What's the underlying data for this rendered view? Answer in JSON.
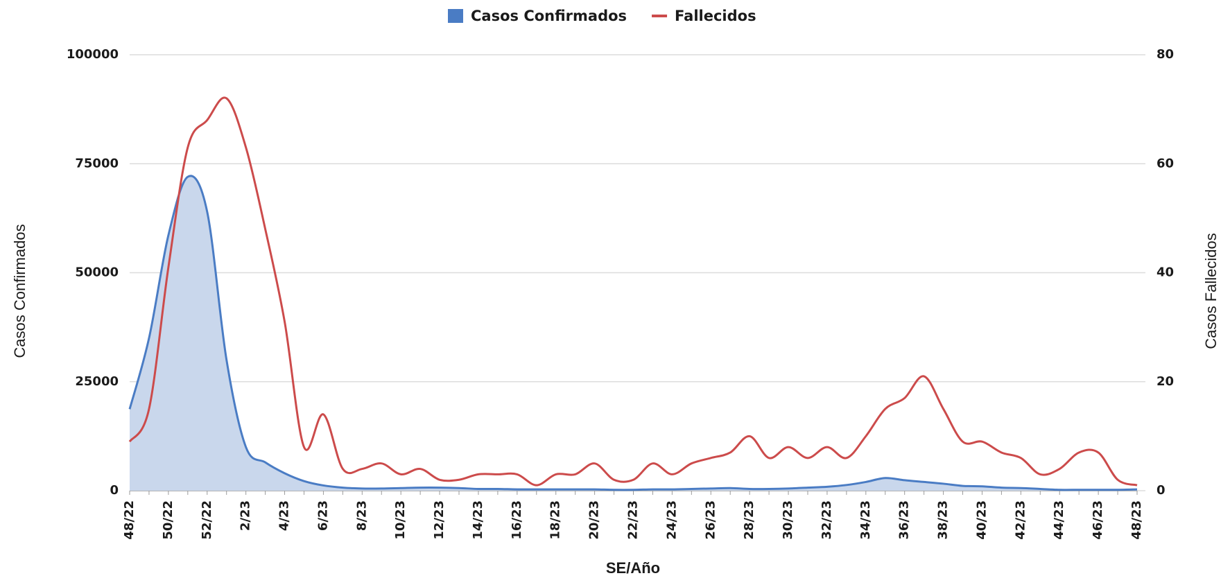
{
  "chart_data": {
    "type": "line",
    "x_label": "SE/Año",
    "y_label": "Casos Confirmados",
    "y2_label": "Casos Fallecidos",
    "categories": [
      "48/22",
      null,
      "50/22",
      null,
      "52/22",
      null,
      "2/23",
      null,
      "4/23",
      null,
      "6/23",
      null,
      "8/23",
      null,
      "10/23",
      null,
      "12/23",
      null,
      "14/23",
      null,
      "16/23",
      null,
      "18/23",
      null,
      "20/23",
      null,
      "22/23",
      null,
      "24/23",
      null,
      "26/23",
      null,
      "28/23",
      null,
      "30/23",
      null,
      "32/23",
      null,
      "34/23",
      null,
      "36/23",
      null,
      "38/23",
      null,
      "40/23",
      null,
      "42/23",
      null,
      "44/23",
      null,
      "46/23",
      null,
      "48/23"
    ],
    "series": [
      {
        "name": "Casos Confirmados",
        "color": "#4a7cc4",
        "fill": "#c9d7ec",
        "axis": "y",
        "values": [
          18700,
          35000,
          58600,
          72000,
          64000,
          30000,
          10000,
          6500,
          4000,
          2200,
          1200,
          700,
          500,
          500,
          600,
          700,
          700,
          600,
          400,
          400,
          300,
          300,
          300,
          300,
          300,
          200,
          200,
          300,
          300,
          400,
          500,
          600,
          400,
          400,
          500,
          700,
          900,
          1300,
          2000,
          2900,
          2400,
          2000,
          1600,
          1100,
          1000,
          700,
          600,
          400,
          200,
          200,
          200,
          200,
          300
        ]
      },
      {
        "name": "Fallecidos",
        "color": "#cc4b4b",
        "axis": "y2",
        "values": [
          9,
          15,
          41,
          63,
          68,
          72,
          63,
          48,
          31,
          8,
          14,
          4,
          4,
          5,
          3,
          4,
          2,
          2,
          3,
          3,
          3,
          1,
          3,
          3,
          5,
          2,
          2,
          5,
          3,
          5,
          6,
          7,
          10,
          6,
          8,
          6,
          8,
          6,
          10,
          15,
          17,
          21,
          15,
          9,
          9,
          7,
          6,
          3,
          4,
          7,
          7,
          2,
          1
        ]
      }
    ],
    "ylim": [
      0,
      100000
    ],
    "yticks": [
      0,
      25000,
      50000,
      75000,
      100000
    ],
    "y2lim": [
      0,
      80
    ],
    "y2ticks": [
      0,
      20,
      40,
      60,
      80
    ],
    "grid": true,
    "legend": "top"
  }
}
